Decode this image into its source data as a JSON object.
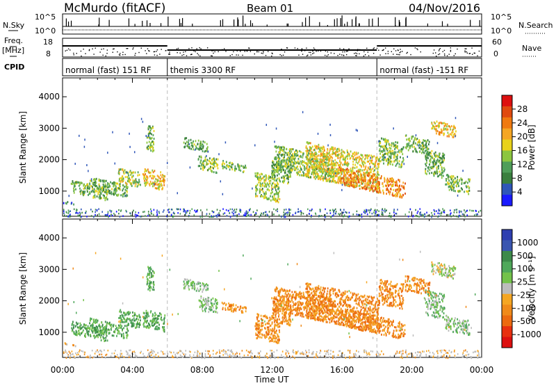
{
  "header": {
    "station": "McMurdo (fitACF)",
    "beam": "Beam 01",
    "date": "04/Nov/2016"
  },
  "strip_labels": {
    "nsky": "N.Sky",
    "nsky_tick_top": "10^5",
    "nsky_tick_bottom": "10^0",
    "nsearch": "N.Search",
    "nsearch_tick_top": "10^5",
    "nsearch_tick_bottom": "10^0",
    "freq": "Freq.",
    "freq_unit": "[MHz]",
    "freq_tick_top": "18",
    "freq_tick_bottom": "8",
    "nave": "Nave",
    "nave_tick_top": "60",
    "nave_tick_bottom": "0",
    "cpid": "CPID"
  },
  "cpid_segments": [
    {
      "label": "normal (fast) 151 RF",
      "start_hour": 0,
      "end_hour": 6
    },
    {
      "label": "themis 3300 RF",
      "start_hour": 6,
      "end_hour": 18
    },
    {
      "label": "normal (fast) -151 RF",
      "start_hour": 18,
      "end_hour": 24
    }
  ],
  "colors": {
    "power": [
      "#1a1aff",
      "#2f56b8",
      "#3a7f3e",
      "#4f9e59",
      "#8cc63f",
      "#e8d21a",
      "#f5a623",
      "#f07a10",
      "#e04a10",
      "#dd1010"
    ],
    "velocity": [
      "#2e3eb0",
      "#3a56b0",
      "#3d8a4a",
      "#4fa85a",
      "#73c24a",
      "#bcbcbc",
      "#f5a623",
      "#f08a1a",
      "#ec6a10",
      "#e83010",
      "#dd1010"
    ]
  },
  "chart_data": [
    {
      "type": "heatmap",
      "name": "power",
      "xlabel": "",
      "ylabel": "Slant Range [km]",
      "x_ticks": [
        "00:00",
        "04:00",
        "08:00",
        "12:00",
        "16:00",
        "20:00",
        "00:00"
      ],
      "y_ticks": [
        "1000",
        "2000",
        "3000",
        "4000"
      ],
      "xlim": [
        0,
        24
      ],
      "ylim": [
        200,
        4600
      ],
      "colorbar_label": "Power [dB]",
      "colorbar_ticks": [
        "4",
        "8",
        "12",
        "16",
        "20",
        "24",
        "28"
      ],
      "colorbar_range": [
        0,
        30
      ]
    },
    {
      "type": "heatmap",
      "name": "velocity",
      "xlabel": "Time UT",
      "ylabel": "Slant Range [km]",
      "x_ticks": [
        "00:00",
        "04:00",
        "08:00",
        "12:00",
        "16:00",
        "20:00",
        "00:00"
      ],
      "y_ticks": [
        "1000",
        "2000",
        "3000",
        "4000"
      ],
      "xlim": [
        0,
        24
      ],
      "ylim": [
        200,
        4600
      ],
      "colorbar_label": "Velocity [m s⁻¹]",
      "colorbar_ticks": [
        "1000",
        "500",
        "100",
        "25",
        "-25",
        "-100",
        "-500",
        "-1000"
      ]
    }
  ]
}
